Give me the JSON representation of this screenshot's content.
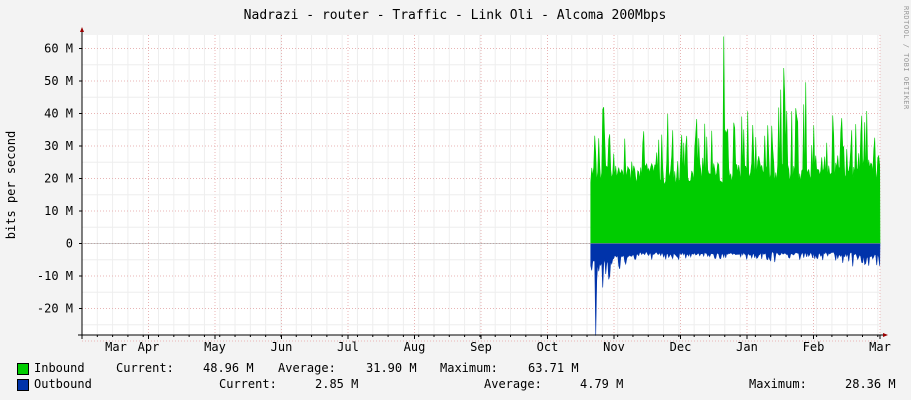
{
  "chart_data": {
    "type": "area",
    "title": "Nadrazi - router - Traffic - Link Oli - Alcoma 200Mbps",
    "ylabel": "bits per second",
    "xlabel": "",
    "watermark": "RRDTOOL / TOBI OETIKER",
    "ylim": [
      -30,
      64
    ],
    "y_ticks": [
      {
        "value": 60,
        "label": "60 M"
      },
      {
        "value": 50,
        "label": "50 M"
      },
      {
        "value": 40,
        "label": "40 M"
      },
      {
        "value": 30,
        "label": "30 M"
      },
      {
        "value": 20,
        "label": "20 M"
      },
      {
        "value": 10,
        "label": "10 M"
      },
      {
        "value": 0,
        "label": "0"
      },
      {
        "value": -10,
        "label": "-10 M"
      },
      {
        "value": -20,
        "label": "-20 M"
      }
    ],
    "x_ticks": [
      "Mar",
      "Apr",
      "May",
      "Jun",
      "Jul",
      "Aug",
      "Sep",
      "Oct",
      "Nov",
      "Dec",
      "Jan",
      "Feb",
      "Mar"
    ],
    "series": [
      {
        "name": "Inbound",
        "color": "#00cc00",
        "sign": 1,
        "x": [
          7.65,
          7.75,
          7.85,
          8.0,
          8.2,
          8.4,
          8.6,
          8.8,
          9.0,
          9.2,
          9.4,
          9.6,
          9.8,
          10.0,
          10.2,
          10.4,
          10.6,
          10.8,
          11.0,
          11.2,
          11.4,
          11.6,
          11.8,
          12.0
        ],
        "base": [
          20,
          22,
          22,
          21,
          22,
          21,
          22,
          20,
          21,
          22,
          21,
          22,
          21,
          22,
          22,
          21,
          22,
          21,
          22,
          21,
          22,
          22,
          22,
          22
        ],
        "peak": [
          35,
          32,
          45,
          30,
          34,
          36,
          30,
          42,
          35,
          38,
          40,
          34,
          48,
          45,
          42,
          38,
          60,
          55,
          45,
          38,
          48,
          40,
          44,
          40
        ],
        "current": "48.96 M",
        "average": "31.90 M",
        "maximum": "63.71 M"
      },
      {
        "name": "Outbound",
        "color": "#0033aa",
        "sign": -1,
        "x": [
          7.65,
          7.75,
          7.85,
          8.0,
          8.2,
          8.4,
          8.6,
          8.8,
          9.0,
          9.2,
          9.4,
          9.6,
          9.8,
          10.0,
          10.2,
          10.4,
          10.6,
          10.8,
          11.0,
          11.2,
          11.4,
          11.6,
          11.8,
          12.0
        ],
        "base": [
          5,
          6,
          5,
          4,
          4,
          3,
          3,
          3,
          3,
          3,
          3,
          3,
          3,
          3,
          3,
          3,
          3,
          3,
          3,
          3,
          3,
          3,
          4,
          3
        ],
        "peak": [
          15,
          14,
          15,
          12,
          6,
          5,
          6,
          5,
          5,
          4,
          4,
          5,
          4,
          5,
          5,
          8,
          5,
          5,
          5,
          6,
          6,
          8,
          8,
          7
        ],
        "current": "2.85 M",
        "average": "4.79 M",
        "maximum": "28.36 M"
      }
    ],
    "peaks": [
      {
        "series": 0,
        "x": 9.65,
        "value": 63.7
      },
      {
        "series": 1,
        "x": 7.72,
        "value": 28.4
      }
    ],
    "legend_labels": {
      "current": "Current:",
      "average": "Average:",
      "maximum": "Maximum:"
    },
    "grid": true,
    "legend_position": "bottom"
  }
}
